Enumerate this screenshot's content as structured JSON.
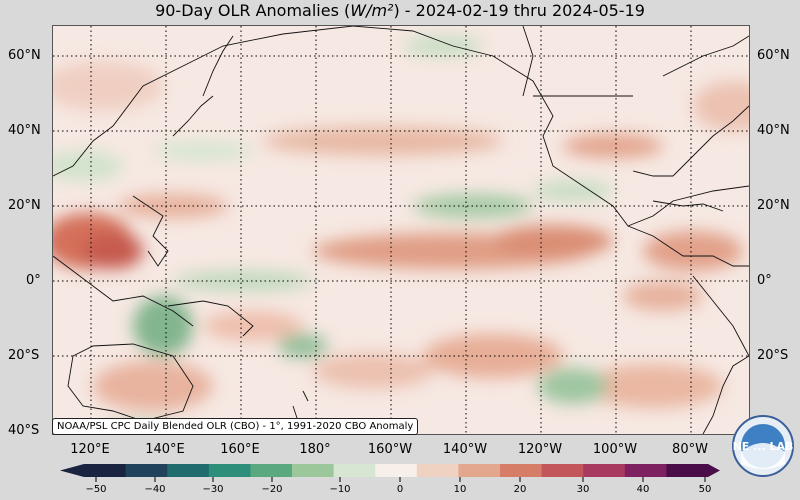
{
  "title": "90-Day OLR Anomalies (W/m²) - 2024-02-19 thru 2024-05-19",
  "map": {
    "latitude_labels": [
      "60°N",
      "40°N",
      "20°N",
      "0°",
      "20°S",
      "40°S"
    ],
    "longitude_labels": [
      "120°E",
      "140°E",
      "160°E",
      "180°",
      "160°W",
      "140°W",
      "120°W",
      "100°W",
      "80°W"
    ],
    "gridlines": "dotted",
    "projection": "equirectangular, Pacific-centered"
  },
  "source_note": "NOAA/PSL CPC Daily Blended OLR (CBO) - 1°, 1991-2020 CBO Anomaly",
  "colorbar": {
    "ticks": [
      "−50",
      "−40",
      "−30",
      "−20",
      "−10",
      "0",
      "10",
      "20",
      "30",
      "40",
      "50"
    ],
    "colors_negative": [
      "#1a2340",
      "#20425a",
      "#1f6b6d",
      "#2d8f7a",
      "#5aa87f",
      "#9bc79a",
      "#d6e6d2"
    ],
    "color_zero": "#f7efea",
    "colors_positive": [
      "#f0d2c2",
      "#e2a78d",
      "#d57d66",
      "#c2565a",
      "#a83a5f",
      "#7d2160",
      "#4a0d4a"
    ]
  },
  "logo": {
    "text": "NE ... LAB",
    "icon": "noaa-psl-logo"
  }
}
